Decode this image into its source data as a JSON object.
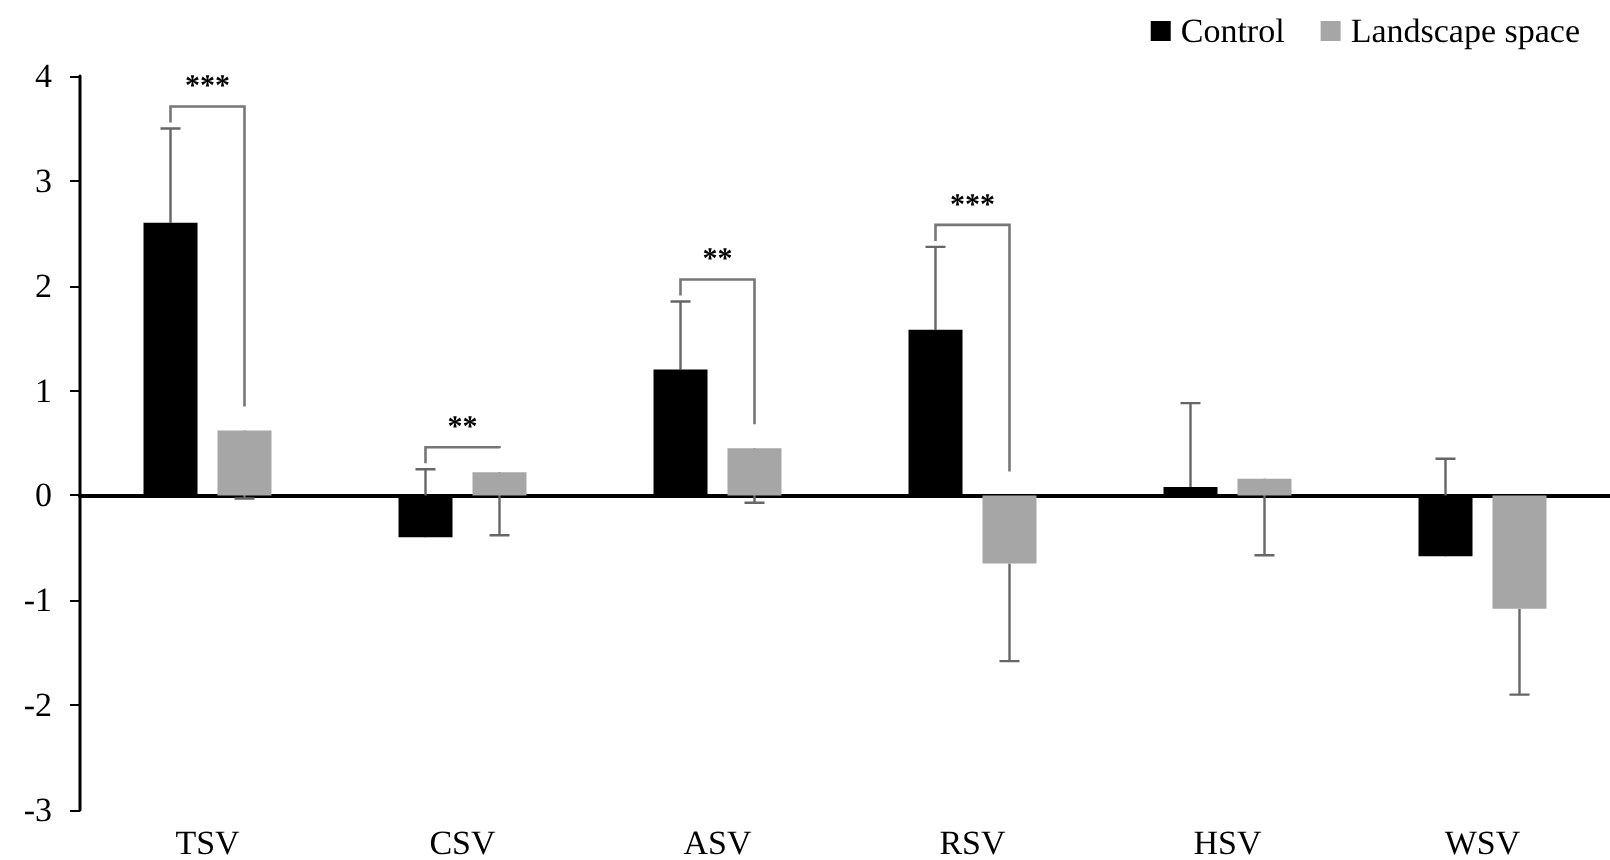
{
  "chart_data": {
    "type": "bar",
    "categories": [
      "TSV",
      "CSV",
      "ASV",
      "RSV",
      "HSV",
      "WSV"
    ],
    "series": [
      {
        "name": "Control",
        "color": "#000000",
        "values": [
          2.6,
          -0.4,
          1.2,
          1.58,
          0.08,
          -0.58
        ],
        "errors": [
          [
            2.6,
            3.5
          ],
          [
            -0.4,
            0.25
          ],
          [
            1.2,
            1.85
          ],
          [
            1.58,
            2.37
          ],
          [
            0.08,
            0.88
          ],
          [
            -0.58,
            0.35
          ]
        ]
      },
      {
        "name": "Landscape space",
        "color": "#a6a6a6",
        "values": [
          0.62,
          0.22,
          0.45,
          -0.65,
          0.16,
          -1.08
        ],
        "errors": [
          [
            -0.03,
            0.62
          ],
          [
            -0.38,
            0.22
          ],
          [
            -0.07,
            0.45
          ],
          [
            -1.58,
            -0.65
          ],
          [
            -0.57,
            0.16
          ],
          [
            -1.9,
            -1.08
          ]
        ]
      }
    ],
    "ylim": [
      -3,
      4
    ],
    "yticks": [
      -3,
      -2,
      -1,
      0,
      1,
      2,
      3,
      4
    ],
    "legend": "top right",
    "annotations": [
      "***",
      "**",
      "**",
      "***"
    ]
  }
}
